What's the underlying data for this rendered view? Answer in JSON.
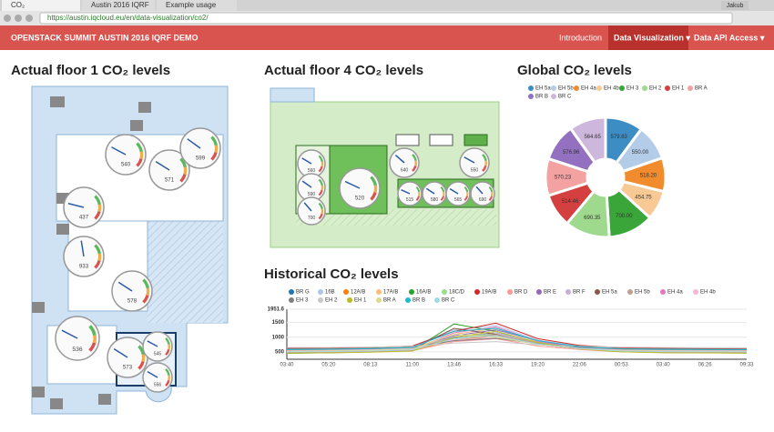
{
  "browser": {
    "tabs": [
      "CO₂",
      "Austin 2016 IQRF",
      "Example usage"
    ],
    "url": "https://austin.iqcloud.eu/en/data-visualization/co2/",
    "user": "Jakub"
  },
  "nav": {
    "brand": "OPENSTACK SUMMIT AUSTIN 2016 IQRF DEMO",
    "links": [
      "Introduction",
      "Data Visualization ▾",
      "Data API Access ▾"
    ]
  },
  "floor1": {
    "title": "Actual floor 1 CO₂ levels",
    "gauge_scale": [
      0,
      2000
    ],
    "gauges": [
      {
        "value": 540
      },
      {
        "value": 571
      },
      {
        "value": 599
      },
      {
        "value": 437
      },
      {
        "value": 933
      },
      {
        "value": 578
      },
      {
        "value": 536
      },
      {
        "value": 573
      },
      {
        "value": 545
      },
      {
        "value": 556
      }
    ]
  },
  "floor4": {
    "title": "Actual floor 4 CO₂ levels",
    "gauge_scale": [
      0,
      2000
    ],
    "gauges": [
      {
        "value": 560
      },
      {
        "value": 590
      },
      {
        "value": 700
      },
      {
        "value": 520
      },
      {
        "value": 640
      },
      {
        "value": 550
      },
      {
        "value": 515
      },
      {
        "value": 580
      },
      {
        "value": 565
      },
      {
        "value": 690
      }
    ]
  },
  "global": {
    "type": "pie",
    "title": "Global CO₂ levels",
    "categories": [
      "EH 5a",
      "EH 5b",
      "EH 4a",
      "EH 4b",
      "EH 3",
      "EH 2",
      "EH 1",
      "BR A",
      "BR B",
      "BR C"
    ],
    "values": [
      579.83,
      550.0,
      518.2,
      454.75,
      700.0,
      690.35,
      514.46,
      570.23,
      576.96,
      564.65
    ],
    "value_labels": [
      "579.83",
      "550.00",
      "518.20",
      "454.75",
      "700.00",
      "690.35",
      "514.46",
      "570.23",
      "576.96",
      "564.65"
    ],
    "colors": [
      "#3c8dc4",
      "#b3cce8",
      "#f08c2e",
      "#f8c995",
      "#3aa63a",
      "#9ed98d",
      "#d43f3f",
      "#f3a1a1",
      "#9370c0",
      "#cdb7dc"
    ]
  },
  "history": {
    "type": "line",
    "title": "Historical CO₂ levels",
    "categories": [
      "03:40",
      "05:20",
      "08:13",
      "11:00",
      "13:46",
      "16:33",
      "19:20",
      "22:06",
      "00:53",
      "03:40",
      "06:26",
      "09:33"
    ],
    "ylim": [
      250,
      1951.6
    ],
    "yticks": [
      500,
      1000,
      1500,
      1951.6
    ],
    "series": [
      {
        "name": "BR G",
        "color": "#1f77b4",
        "values": [
          520,
          540,
          560,
          600,
          980,
          1150,
          820,
          640,
          560,
          530,
          520,
          510
        ]
      },
      {
        "name": "16B",
        "color": "#aec7e8",
        "values": [
          600,
          610,
          640,
          700,
          1250,
          1400,
          900,
          700,
          620,
          600,
          590,
          580
        ]
      },
      {
        "name": "12A/B",
        "color": "#ff7f0e",
        "values": [
          480,
          500,
          520,
          560,
          900,
          1050,
          760,
          600,
          520,
          500,
          490,
          480
        ]
      },
      {
        "name": "17A/B",
        "color": "#ffbb78",
        "values": [
          550,
          560,
          580,
          620,
          1100,
          1300,
          850,
          680,
          580,
          560,
          550,
          540
        ]
      },
      {
        "name": "16A/B",
        "color": "#2ca02c",
        "values": [
          450,
          470,
          500,
          540,
          1450,
          1200,
          800,
          620,
          520,
          480,
          470,
          460
        ]
      },
      {
        "name": "18C/D",
        "color": "#98df8a",
        "values": [
          500,
          510,
          530,
          580,
          1000,
          1100,
          780,
          630,
          540,
          510,
          500,
          495
        ]
      },
      {
        "name": "19A/B",
        "color": "#d62728",
        "values": [
          620,
          630,
          650,
          700,
          1200,
          1480,
          950,
          720,
          640,
          620,
          610,
          600
        ]
      },
      {
        "name": "BR D",
        "color": "#ff9896",
        "values": [
          470,
          480,
          500,
          540,
          850,
          950,
          700,
          580,
          500,
          480,
          470,
          465
        ]
      },
      {
        "name": "BR E",
        "color": "#9467bd",
        "values": [
          530,
          540,
          560,
          600,
          1050,
          1250,
          880,
          660,
          570,
          540,
          530,
          520
        ]
      },
      {
        "name": "BR F",
        "color": "#c5b0d5",
        "values": [
          580,
          590,
          610,
          650,
          1000,
          1150,
          820,
          670,
          600,
          580,
          575,
          570
        ]
      },
      {
        "name": "EH 5a",
        "color": "#8c564b",
        "values": [
          510,
          520,
          540,
          590,
          1300,
          1100,
          760,
          610,
          530,
          515,
          505,
          500
        ]
      },
      {
        "name": "EH 5b",
        "color": "#c49c94",
        "values": [
          560,
          570,
          590,
          640,
          950,
          1080,
          800,
          650,
          580,
          560,
          555,
          550
        ]
      },
      {
        "name": "EH 4a",
        "color": "#e377c2",
        "values": [
          490,
          500,
          520,
          560,
          1150,
          1350,
          860,
          640,
          540,
          500,
          495,
          490
        ]
      },
      {
        "name": "EH 4b",
        "color": "#f7b6d2",
        "values": [
          540,
          550,
          570,
          610,
          900,
          1000,
          760,
          620,
          560,
          545,
          540,
          535
        ]
      },
      {
        "name": "EH 3",
        "color": "#7f7f7f",
        "values": [
          600,
          600,
          620,
          660,
          880,
          960,
          780,
          660,
          610,
          600,
          595,
          590
        ]
      },
      {
        "name": "EH 2",
        "color": "#c7c7c7",
        "values": [
          650,
          650,
          660,
          690,
          800,
          850,
          740,
          690,
          660,
          650,
          645,
          640
        ]
      },
      {
        "name": "EH 1",
        "color": "#bcbd22",
        "values": [
          460,
          470,
          490,
          530,
          1000,
          1200,
          820,
          600,
          500,
          470,
          465,
          460
        ]
      },
      {
        "name": "BR A",
        "color": "#dbdb8d",
        "values": [
          520,
          530,
          550,
          590,
          1100,
          1000,
          760,
          610,
          540,
          525,
          520,
          515
        ]
      },
      {
        "name": "BR B",
        "color": "#17becf",
        "values": [
          580,
          590,
          610,
          650,
          1200,
          1300,
          880,
          680,
          600,
          585,
          580,
          575
        ]
      },
      {
        "name": "BR C",
        "color": "#9edae5",
        "values": [
          500,
          510,
          530,
          570,
          950,
          1050,
          770,
          620,
          530,
          510,
          505,
          500
        ]
      }
    ]
  }
}
